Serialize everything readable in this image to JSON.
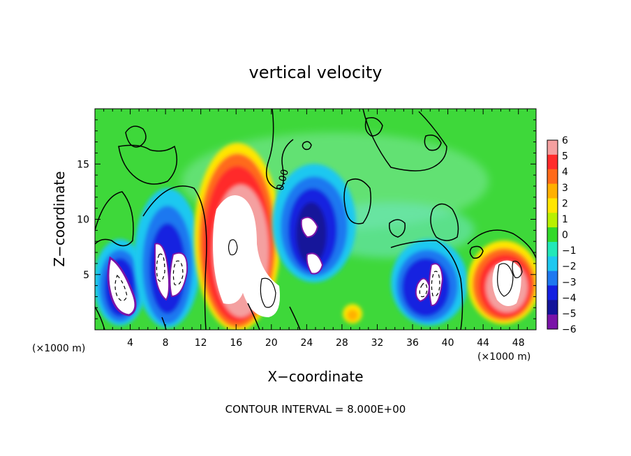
{
  "chart_data": {
    "type": "heatmap",
    "title": "vertical velocity",
    "xlabel": "X−coordinate",
    "ylabel": "Z−coordinate",
    "x_unit_left": "(×1000 m)",
    "x_unit_right": "(×1000 m)",
    "footnote": "CONTOUR INTERVAL = 8.000E+00",
    "xlim": [
      0,
      50
    ],
    "ylim": [
      0,
      20
    ],
    "x_ticks": [
      4,
      8,
      12,
      16,
      20,
      24,
      28,
      32,
      36,
      40,
      44,
      48
    ],
    "x_tick_labels": [
      "4",
      "8",
      "12",
      "16",
      "20",
      "24",
      "28",
      "32",
      "36",
      "40",
      "44",
      "48"
    ],
    "y_ticks": [
      5,
      10,
      15
    ],
    "y_tick_labels": [
      "5",
      "10",
      "15"
    ],
    "colorbar": {
      "min": -6,
      "max": 6,
      "labels": [
        "6",
        "5",
        "4",
        "3",
        "2",
        "1",
        "0",
        "−1",
        "−2",
        "−3",
        "−4",
        "−5",
        "−6"
      ],
      "colors": [
        "#f4a0a0",
        "#ff2b2b",
        "#ff6a1a",
        "#ffb000",
        "#ffe600",
        "#b8f000",
        "#32d92a",
        "#22e8b8",
        "#1ec8f0",
        "#1e78f0",
        "#1420e0",
        "#14149a",
        "#7a14a8"
      ]
    },
    "contour_label": "0.00",
    "cells": [
      {
        "x": 3,
        "z": 3,
        "w": -8
      },
      {
        "x": 8.5,
        "z": 4.5,
        "w": -8
      },
      {
        "x": 16,
        "z": 6,
        "w": 8
      },
      {
        "x": 25,
        "z": 6.5,
        "w": -6
      },
      {
        "x": 38,
        "z": 3,
        "w": -8
      },
      {
        "x": 46.5,
        "z": 3.5,
        "w": 8
      }
    ]
  }
}
